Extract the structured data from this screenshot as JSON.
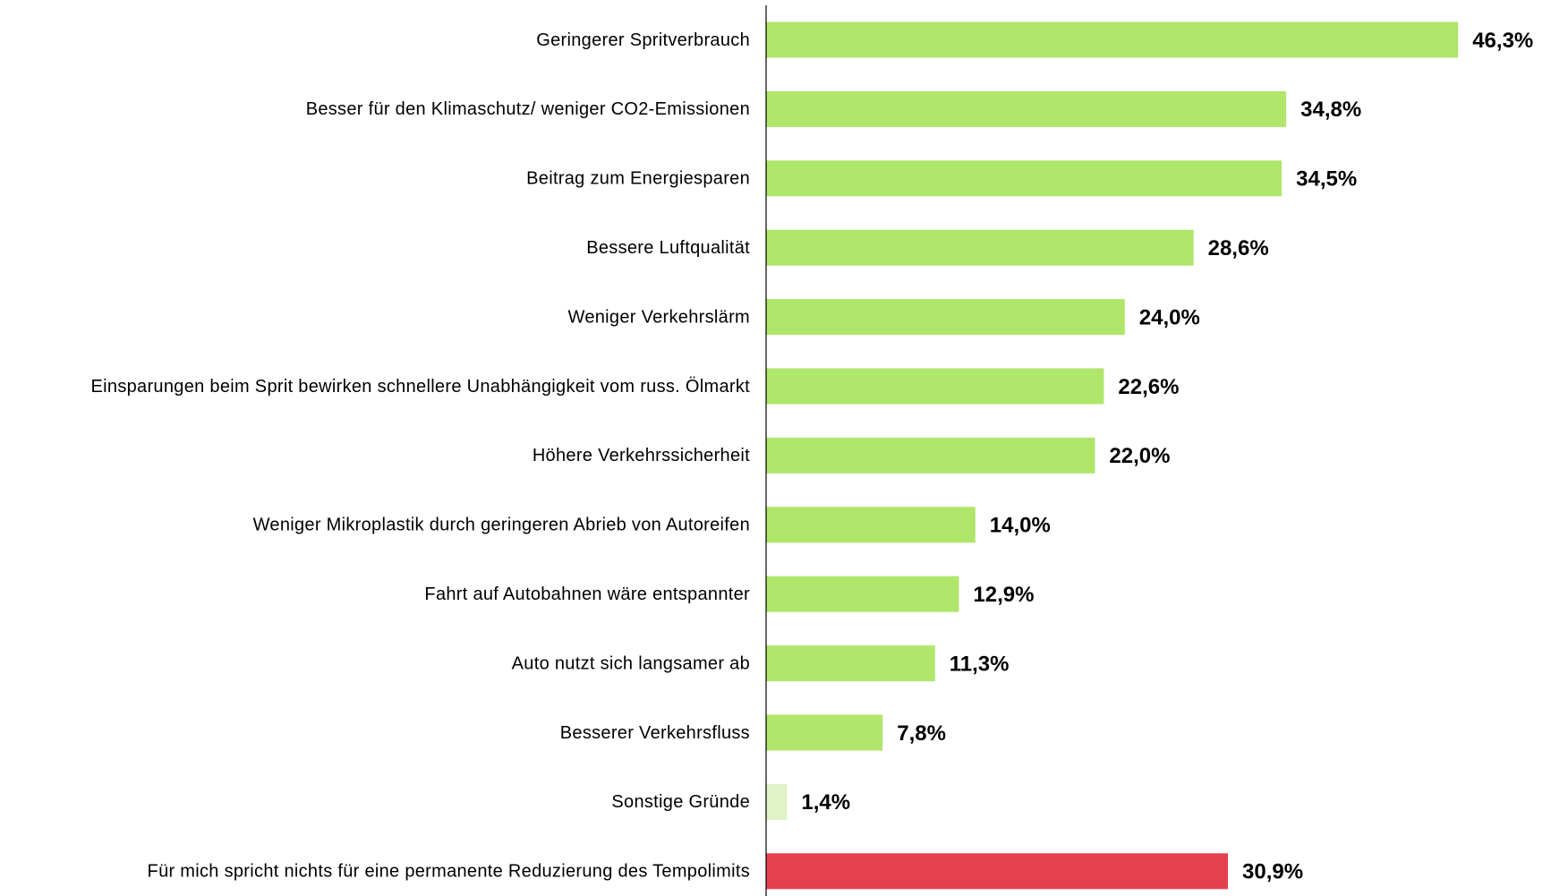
{
  "chart_data": {
    "type": "barh",
    "categories": [
      "Geringerer Spritverbrauch",
      "Besser für den Klimaschutz/ weniger CO2-Emissionen",
      "Beitrag zum Energiesparen",
      "Bessere Luftqualität",
      "Weniger Verkehrslärm",
      "Einsparungen beim Sprit bewirken schnellere Unabhängigkeit vom russ. Ölmarkt",
      "Höhere Verkehrssicherheit",
      "Weniger Mikroplastik durch geringeren Abrieb von Autoreifen",
      "Fahrt auf Autobahnen wäre entspannter",
      "Auto nutzt sich langsamer ab",
      "Besserer Verkehrsfluss",
      "Sonstige Gründe",
      "Für mich spricht nichts für eine permanente Reduzierung des Tempolimits"
    ],
    "values": [
      46.3,
      34.8,
      34.5,
      28.6,
      24.0,
      22.6,
      22.0,
      14.0,
      12.9,
      11.3,
      7.8,
      1.4,
      30.9
    ],
    "value_labels": [
      "46,3%",
      "34,8%",
      "34,5%",
      "28,6%",
      "24,0%",
      "22,6%",
      "22,0%",
      "14,0%",
      "12,9%",
      "11,3%",
      "7,8%",
      "1,4%",
      "30,9%"
    ],
    "colors": [
      "#b0e66a",
      "#b0e66a",
      "#b0e66a",
      "#b0e66a",
      "#b0e66a",
      "#b0e66a",
      "#b0e66a",
      "#b0e66a",
      "#b0e66a",
      "#b0e66a",
      "#b0e66a",
      "#dff2c8",
      "#e5404f"
    ]
  }
}
